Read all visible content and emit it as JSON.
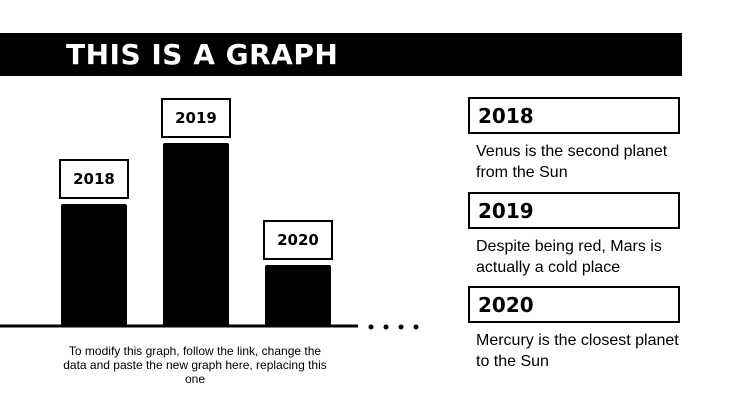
{
  "title": "THIS IS A GRAPH",
  "note": "To modify this graph, follow the link, change the data and paste the new graph here, replacing this one",
  "chart_data": {
    "type": "bar",
    "categories": [
      "2018",
      "2019",
      "2020"
    ],
    "values": [
      2,
      3,
      1
    ]
  },
  "cards": [
    {
      "label": "2018",
      "description": "Venus is the second planet from the Sun"
    },
    {
      "label": "2019",
      "description": "Despite being red, Mars is actually a cold place"
    },
    {
      "label": "2020",
      "description": "Mercury is the closest planet to the Sun"
    }
  ]
}
